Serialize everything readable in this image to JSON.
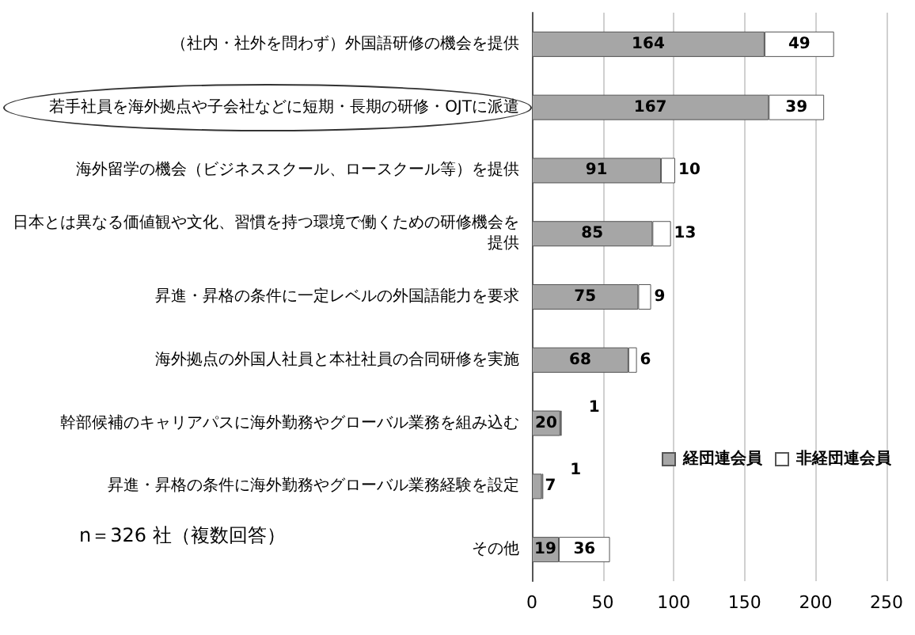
{
  "chart_data": {
    "type": "bar",
    "orientation": "horizontal",
    "stacked": true,
    "categories": [
      "（社内・社外を問わず）外国語研修の機会を提供",
      "若手社員を海外拠点や子会社などに短期・長期の研修・OJTに派遣",
      "海外留学の機会（ビジネススクール、ロースクール等）を提供",
      "日本とは異なる価値観や文化、習慣を持つ環境で働くための研修機会を提供",
      "昇進・昇格の条件に一定レベルの外国語能力を要求",
      "海外拠点の外国人社員と本社社員の合同研修を実施",
      "幹部候補のキャリアパスに海外勤務やグローバル業務を組み込む",
      "昇進・昇格の条件に海外勤務やグローバル業務経験を設定",
      "その他"
    ],
    "series": [
      {
        "name": "経団連会員",
        "color": "#a6a6a6",
        "values": [
          164,
          167,
          91,
          85,
          75,
          68,
          20,
          7,
          19
        ]
      },
      {
        "name": "非経団連会員",
        "color": "#ffffff",
        "values": [
          49,
          39,
          10,
          13,
          9,
          6,
          1,
          1,
          36
        ]
      }
    ],
    "xlim": [
      0,
      250
    ],
    "xticks": [
      0,
      50,
      100,
      150,
      200,
      250
    ],
    "grid": "x",
    "legend": "right",
    "data_labels": true,
    "annotations": [
      "n＝326 社（複数回答）"
    ]
  }
}
